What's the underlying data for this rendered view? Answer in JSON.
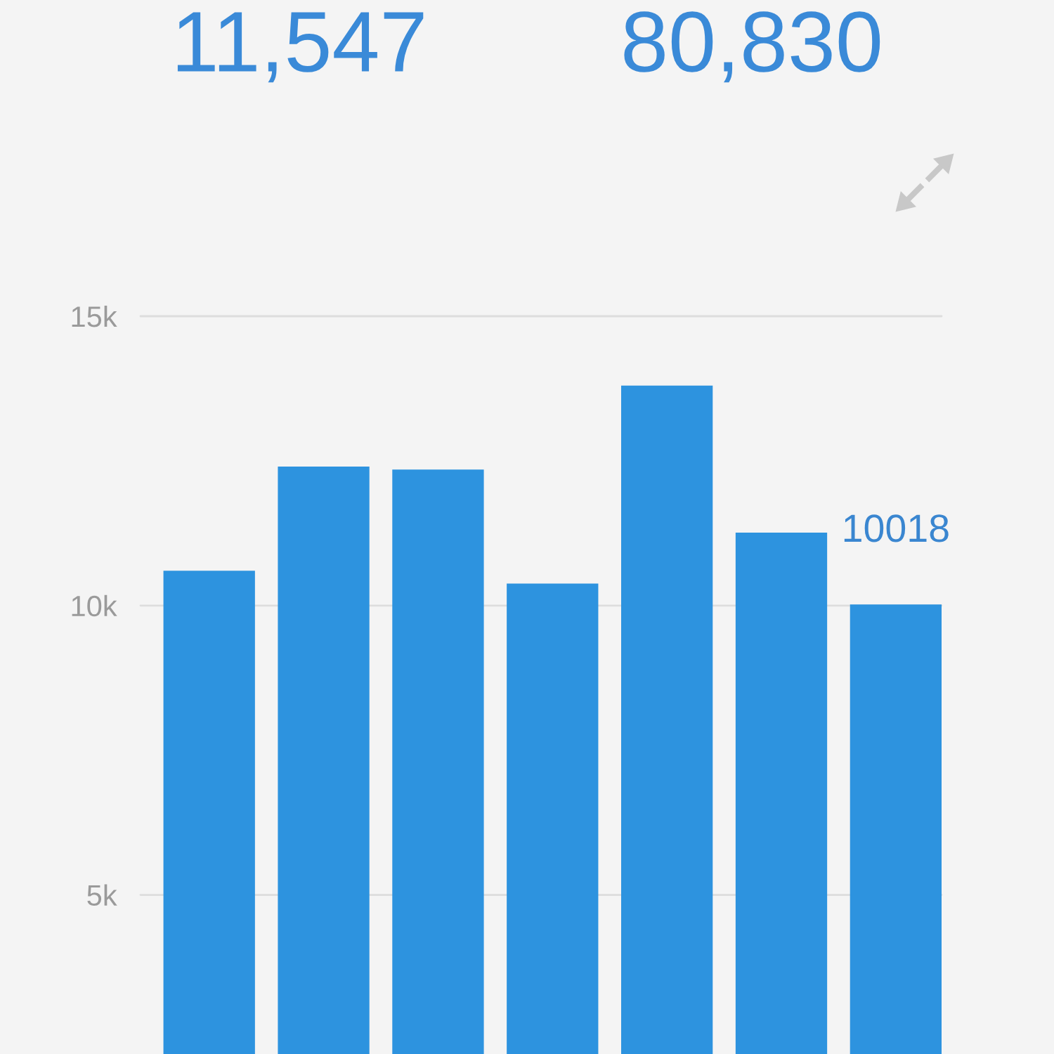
{
  "chart_data": {
    "type": "bar",
    "annotations": [
      "11,547",
      "80,830"
    ],
    "categories": [
      null,
      null,
      null,
      null,
      null,
      null,
      null
    ],
    "values": [
      10600,
      12400,
      12350,
      10380,
      13800,
      11260,
      10018
    ],
    "value_labels": [
      null,
      null,
      null,
      null,
      null,
      null,
      "10018"
    ],
    "color": "#2d93df",
    "ylim": [
      2250,
      15000
    ],
    "yticks": [
      {
        "value": 5000,
        "label": "5k"
      },
      {
        "value": 10000,
        "label": "10k"
      },
      {
        "value": 15000,
        "label": "15k"
      }
    ],
    "grid": "y",
    "legend": false
  }
}
